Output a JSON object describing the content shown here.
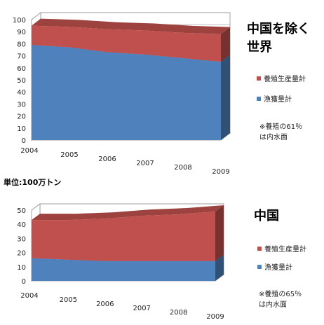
{
  "chart_data": [
    {
      "type": "area",
      "title_lines": [
        "中国を除く",
        "世界"
      ],
      "x": [
        "2004",
        "2005",
        "2006",
        "2007",
        "2008",
        "2009"
      ],
      "ylim": [
        0,
        100
      ],
      "yticks": [
        0,
        10,
        20,
        30,
        40,
        50,
        60,
        70,
        80,
        90,
        100
      ],
      "stacked": true,
      "grid": true,
      "series": [
        {
          "name": "漁獲量計",
          "color": "#4f81bd",
          "values": [
            79,
            77,
            73,
            71,
            68,
            65
          ]
        },
        {
          "name": "養殖生産量計",
          "color": "#c0504d",
          "values": [
            16,
            17,
            19,
            20,
            21,
            23
          ]
        }
      ],
      "legend_position": "right",
      "note_lines": [
        "※養殖の61％",
        "は内水面"
      ]
    },
    {
      "type": "area",
      "title_lines": [
        "中国"
      ],
      "x": [
        "2004",
        "2005",
        "2006",
        "2007",
        "2008",
        "2009"
      ],
      "ylim": [
        0,
        50
      ],
      "yticks": [
        0,
        10,
        20,
        30,
        40,
        50
      ],
      "stacked": true,
      "grid": true,
      "series": [
        {
          "name": "漁獲量計",
          "color": "#4f81bd",
          "values": [
            16,
            15,
            14,
            14,
            14,
            14
          ]
        },
        {
          "name": "養殖生産量計",
          "color": "#c0504d",
          "values": [
            27,
            28,
            30,
            32,
            33,
            35
          ]
        }
      ],
      "legend_position": "right",
      "note_lines": [
        "※養殖の65％",
        "は内水面"
      ]
    }
  ],
  "unit_label": "単位:100万トン"
}
